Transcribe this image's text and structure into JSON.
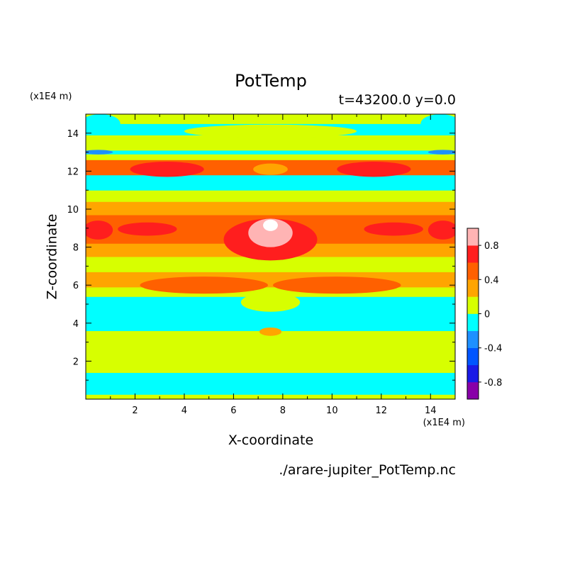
{
  "chart_data": {
    "type": "heatmap",
    "title": "PotTemp",
    "subtitle": "t=43200.0 y=0.0",
    "xlabel": "X-coordinate",
    "ylabel": "Z-coordinate",
    "x_unit": "(x1E4 m)",
    "z_unit": "(x1E4 m)",
    "source_file": "./arare-jupiter_PotTemp.nc",
    "xlim": [
      0,
      15
    ],
    "ylim": [
      0,
      15
    ],
    "x_ticks": [
      "2",
      "4",
      "6",
      "8",
      "10",
      "12",
      "14"
    ],
    "y_ticks": [
      "2",
      "4",
      "6",
      "8",
      "10",
      "12",
      "14"
    ],
    "colorbar": {
      "range": [
        -1.0,
        1.0
      ],
      "step": 0.2,
      "tick_labels": [
        "0.8",
        "0.4",
        "0",
        "-0.4",
        "-0.8"
      ],
      "colors": [
        "#8800a8",
        "#1a1ae6",
        "#0055ff",
        "#1e90ff",
        "#00ffff",
        "#d7ff00",
        "#ffa500",
        "#ff6000",
        "#ff1e1e",
        "#ffb4b4"
      ],
      "above_max_color": "#ffffff"
    },
    "bands": [
      {
        "z": [
          0.0,
          0.25
        ],
        "level": 0
      },
      {
        "z": [
          0.25,
          1.4
        ],
        "level": -0.2
      },
      {
        "z": [
          1.4,
          3.6
        ],
        "level": 0
      },
      {
        "z": [
          3.6,
          5.4
        ],
        "level": -0.2
      },
      {
        "z": [
          5.4,
          5.9
        ],
        "level": 0
      },
      {
        "z": [
          5.9,
          6.7
        ],
        "level": 0.2
      },
      {
        "z": [
          6.7,
          7.5
        ],
        "level": 0
      },
      {
        "z": [
          7.5,
          8.2
        ],
        "level": 0.2
      },
      {
        "z": [
          8.2,
          9.7
        ],
        "level": 0.4
      },
      {
        "z": [
          9.7,
          10.4
        ],
        "level": 0.2
      },
      {
        "z": [
          10.4,
          11.0
        ],
        "level": 0
      },
      {
        "z": [
          11.0,
          11.8
        ],
        "level": -0.2
      },
      {
        "z": [
          11.8,
          12.6
        ],
        "level": 0.4
      },
      {
        "z": [
          12.6,
          12.9
        ],
        "level": 0
      },
      {
        "z": [
          12.9,
          13.1
        ],
        "level": -0.2
      },
      {
        "z": [
          13.1,
          13.9
        ],
        "level": 0
      },
      {
        "z": [
          13.9,
          14.5
        ],
        "level": -0.2
      },
      {
        "z": [
          14.5,
          15.0
        ],
        "level": 0
      }
    ],
    "features": [
      {
        "cx": 7.5,
        "cz": 3.55,
        "rx": 0.45,
        "rz": 0.22,
        "level": 0.2
      },
      {
        "cx": 7.5,
        "cz": 5.1,
        "rx": 1.2,
        "rz": 0.5,
        "level": 0
      },
      {
        "cx": 4.8,
        "cz": 6.0,
        "rx": 2.6,
        "rz": 0.45,
        "level": 0.4
      },
      {
        "cx": 10.2,
        "cz": 6.0,
        "rx": 2.6,
        "rz": 0.45,
        "level": 0.4
      },
      {
        "cx": 7.5,
        "cz": 8.4,
        "rx": 1.9,
        "rz": 1.1,
        "level": 0.6
      },
      {
        "cx": 2.5,
        "cz": 8.95,
        "rx": 1.2,
        "rz": 0.35,
        "level": 0.6
      },
      {
        "cx": 12.5,
        "cz": 8.95,
        "rx": 1.2,
        "rz": 0.35,
        "level": 0.6
      },
      {
        "cx": 0.5,
        "cz": 8.9,
        "rx": 0.6,
        "rz": 0.5,
        "level": 0.6
      },
      {
        "cx": 14.5,
        "cz": 8.9,
        "rx": 0.6,
        "rz": 0.5,
        "level": 0.6
      },
      {
        "cx": 7.5,
        "cz": 8.75,
        "rx": 0.9,
        "rz": 0.75,
        "level": 0.8
      },
      {
        "cx": 7.5,
        "cz": 9.15,
        "rx": 0.3,
        "rz": 0.3,
        "level": 1.0
      },
      {
        "cx": 3.3,
        "cz": 12.1,
        "rx": 1.5,
        "rz": 0.4,
        "level": 0.6
      },
      {
        "cx": 11.7,
        "cz": 12.1,
        "rx": 1.5,
        "rz": 0.4,
        "level": 0.6
      },
      {
        "cx": 7.5,
        "cz": 12.1,
        "rx": 0.7,
        "rz": 0.3,
        "level": 0.2
      },
      {
        "cx": 7.5,
        "cz": 14.1,
        "rx": 3.5,
        "rz": 0.35,
        "level": 0
      },
      {
        "cx": 0.6,
        "cz": 14.5,
        "rx": 0.8,
        "rz": 0.5,
        "level": -0.2
      },
      {
        "cx": 14.4,
        "cz": 14.5,
        "rx": 0.8,
        "rz": 0.5,
        "level": -0.2
      },
      {
        "cx": 0.5,
        "cz": 13.0,
        "rx": 0.6,
        "rz": 0.12,
        "level": -0.4
      },
      {
        "cx": 14.5,
        "cz": 13.0,
        "rx": 0.6,
        "rz": 0.12,
        "level": -0.4
      }
    ]
  }
}
